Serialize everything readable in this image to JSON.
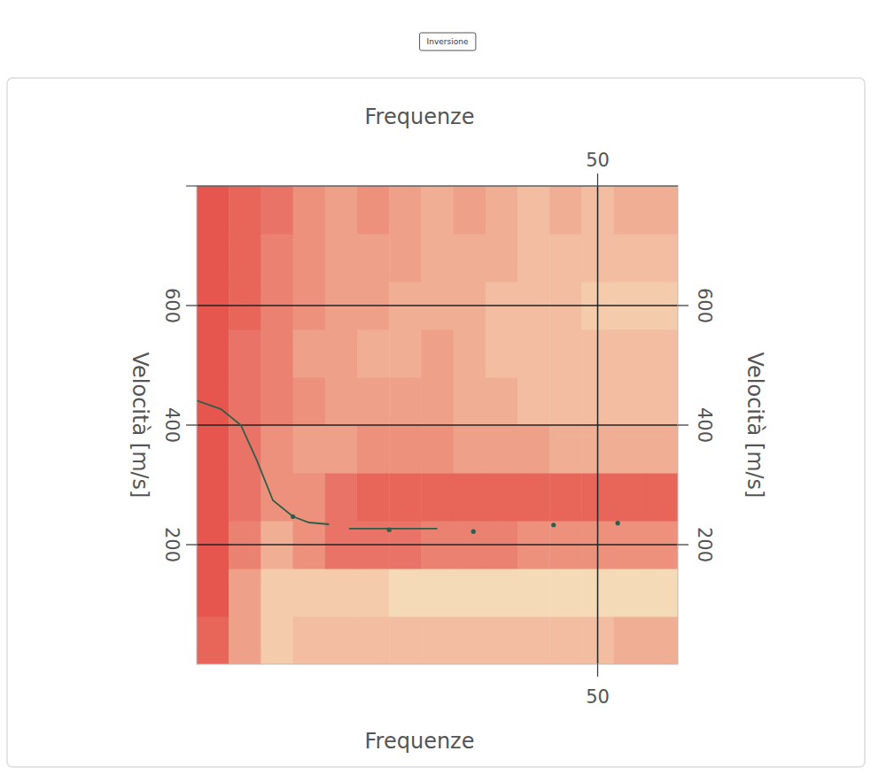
{
  "chart_data": {
    "type": "heatmap",
    "button": "Inversione",
    "x_label": "Frequenze",
    "y_label": "Velocità [m/s]",
    "xlim": [
      0,
      60
    ],
    "ylim": [
      0,
      800
    ],
    "xticks": [
      50
    ],
    "yticks": [
      200,
      400,
      600
    ],
    "grid": true,
    "heatmap": {
      "x_edges": [
        0,
        4,
        8,
        12,
        16,
        20,
        24,
        28,
        32,
        36,
        40,
        44,
        48,
        52,
        56,
        60
      ],
      "y_edges": [
        0,
        80,
        160,
        240,
        320,
        400,
        480,
        560,
        640,
        720,
        800
      ],
      "cells": [
        [
          0.9,
          0.5,
          0.2,
          0.3,
          0.3,
          0.3,
          0.3,
          0.3,
          0.3,
          0.3,
          0.3,
          0.3,
          0.3,
          0.4,
          0.4
        ],
        [
          1,
          0.5,
          0.2,
          0.2,
          0.2,
          0.2,
          0.1,
          0.1,
          0.1,
          0.1,
          0.1,
          0.1,
          0.1,
          0.1,
          0.1
        ],
        [
          1,
          0.7,
          0.4,
          0.6,
          0.8,
          0.8,
          0.8,
          0.7,
          0.7,
          0.7,
          0.6,
          0.6,
          0.6,
          0.6,
          0.6
        ],
        [
          1,
          0.8,
          0.6,
          0.6,
          0.8,
          0.9,
          0.9,
          0.9,
          0.9,
          0.9,
          0.9,
          0.9,
          0.9,
          0.9,
          0.9
        ],
        [
          1,
          0.8,
          0.6,
          0.5,
          0.5,
          0.6,
          0.6,
          0.6,
          0.5,
          0.5,
          0.5,
          0.4,
          0.4,
          0.4,
          0.4
        ],
        [
          1,
          0.8,
          0.7,
          0.6,
          0.5,
          0.5,
          0.5,
          0.5,
          0.4,
          0.4,
          0.3,
          0.3,
          0.3,
          0.3,
          0.3
        ],
        [
          1,
          0.8,
          0.7,
          0.5,
          0.5,
          0.4,
          0.4,
          0.5,
          0.4,
          0.3,
          0.3,
          0.3,
          0.3,
          0.3,
          0.3
        ],
        [
          1,
          0.9,
          0.7,
          0.6,
          0.5,
          0.5,
          0.4,
          0.4,
          0.4,
          0.3,
          0.3,
          0.3,
          0.2,
          0.2,
          0.2
        ],
        [
          1,
          0.9,
          0.7,
          0.6,
          0.5,
          0.5,
          0.5,
          0.4,
          0.4,
          0.4,
          0.3,
          0.3,
          0.3,
          0.3,
          0.3
        ],
        [
          1,
          0.9,
          0.8,
          0.6,
          0.5,
          0.6,
          0.5,
          0.4,
          0.5,
          0.4,
          0.3,
          0.4,
          0.3,
          0.4,
          0.4
        ]
      ],
      "color_range": [
        0,
        1
      ],
      "colors": [
        "#f7e9c4",
        "#e6564e"
      ]
    },
    "series": [
      {
        "type": "line",
        "color": "#2f5e48",
        "x": [
          0,
          3,
          5.5,
          7.5,
          9.5,
          12,
          14,
          16.5,
          18.5,
          19,
          30
        ],
        "values": [
          441,
          427,
          400,
          341,
          274,
          247,
          237,
          234,
          null,
          227,
          227
        ]
      },
      {
        "type": "scatter",
        "color": "#2f5e48",
        "marker": "circle",
        "x": [
          12,
          24,
          34.5,
          44.5,
          52.5
        ],
        "values": [
          247,
          225,
          222,
          233,
          236
        ]
      }
    ]
  }
}
